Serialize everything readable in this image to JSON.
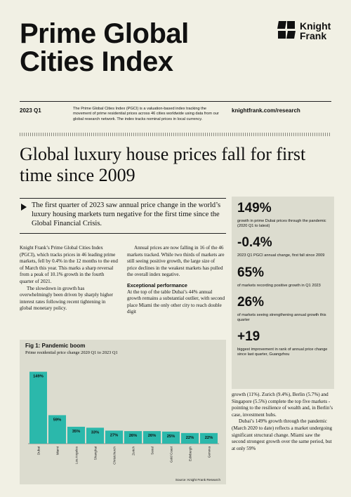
{
  "header": {
    "title_line1": "Prime Global",
    "title_line2": "Cities Index",
    "logo_line1": "Knight",
    "logo_line2": "Frank",
    "quarter": "2023 Q1",
    "description": "The Prime Global Cities Index (PGCI) is a valuation-based index tracking the movement of prime residential prices across 46 cities worldwide using data from our global research network. The index tracks nominal prices in local currency.",
    "website": "knightfrank.com/research"
  },
  "headline": "Global luxury house prices fall for first time since 2009",
  "lead": "The first quarter of 2023 saw annual price change in the world’s luxury housing markets turn negative for the first time since the Global Financial Crisis.",
  "body": {
    "col1_p1": "Knight Frank’s Prime Global Cities Index (PGCI), which tracks prices in 46 leading prime markets, fell by 0.4% in the 12 months to the end of March this year. This marks a sharp reversal from a peak of 10.1% growth in the fourth quarter of 2021.",
    "col1_p2": "The slowdown in growth has overwhelmingly been driven by sharply higher interest rates following recent tightening in global monetary policy.",
    "col2_p1": "Annual prices are now falling in 16 of the 46 markets tracked. While two thirds of markets are still seeing positive growth, the large size of price declines in the weakest markets has pulled the overall index negative.",
    "col2_heading": "Exceptional performance",
    "col2_p2": "At the top of the table Dubai’s 44% annual growth remains a substantial outlier, with second place Miami the only other city to reach double digit",
    "col3_p1": "growth (11%). Zurich (9.4%), Berlin (5.7%) and Singapore (5.5%) complete the top five markets - pointing to the resilience of wealth and, in Berlin’s case, investment hubs.",
    "col3_p2": "Dubai’s 149% growth through the pandemic (March 2020 to date) reflects a market undergoing significant structural change. Miami saw the second strongest growth over the same period, but at only 59%"
  },
  "stats": [
    {
      "value": "149%",
      "desc": "growth in prime Dubai prices through the pandemic (2020 Q1 to latest)"
    },
    {
      "value": "-0.4%",
      "desc": "2023 Q1 PGCI annual change, first fall since 2009"
    },
    {
      "value": "65%",
      "desc": "of markets recording positive growth in Q1 2023"
    },
    {
      "value": "26%",
      "desc": "of markets seeing strengthening annual growth this quarter"
    },
    {
      "value": "+19",
      "desc": "biggest improvement in rank of annual price change since last quarter, Guangzhou"
    }
  ],
  "colors": {
    "bar": "#2bb8ab",
    "background": "#f1f0e4",
    "panel": "#dcdccf"
  },
  "chart_data": {
    "type": "bar",
    "title": "Fig 1: Pandemic boom",
    "subtitle": "Prime residential price change 2020 Q1 to 2023 Q1",
    "source": "Source: Knight Frank Research",
    "categories": [
      "Dubai",
      "Miami",
      "Los Angeles",
      "Shanghai",
      "Christchurch",
      "Zurich",
      "Seoul",
      "Gold Coast",
      "Edinburgh",
      "Geneva"
    ],
    "values": [
      149,
      59,
      35,
      33,
      27,
      26,
      26,
      25,
      22,
      22
    ],
    "data_labels": [
      "149%",
      "59%",
      "35%",
      "33%",
      "27%",
      "26%",
      "26%",
      "25%",
      "22%",
      "22%"
    ],
    "ylim": [
      0,
      160
    ]
  }
}
